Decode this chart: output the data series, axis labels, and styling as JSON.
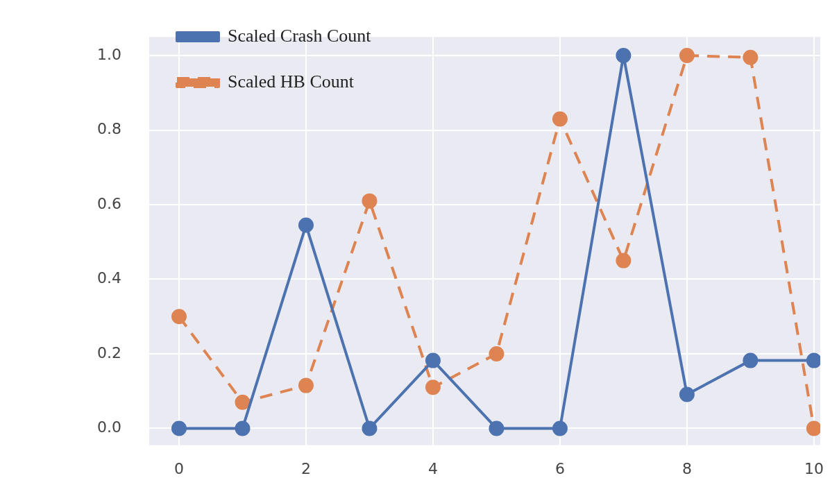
{
  "chart_data": {
    "type": "line",
    "x": [
      0,
      1,
      2,
      3,
      4,
      5,
      6,
      7,
      8,
      9,
      10
    ],
    "series": [
      {
        "name": "Scaled Crash Count",
        "color": "#4c72b0",
        "line_style": "solid",
        "values": [
          0,
          0,
          0.545,
          0,
          0.182,
          0,
          0,
          1.0,
          0.091,
          0.182,
          0.182
        ]
      },
      {
        "name": "Scaled HB Count",
        "color": "#dd8452",
        "line_style": "dashed",
        "values": [
          0.3,
          0.07,
          0.115,
          0.61,
          0.11,
          0.2,
          0.83,
          0.45,
          1.0,
          0.995,
          0
        ]
      }
    ],
    "xlim": [
      -0.47,
      10.1
    ],
    "xticks": [
      0,
      2,
      4,
      6,
      8,
      10
    ],
    "ylim": [
      -0.045,
      1.05
    ],
    "yticks": [
      {
        "value": 0,
        "label": "0.0"
      },
      {
        "value": 0.2,
        "label": "0.2"
      },
      {
        "value": 0.4,
        "label": "0.4"
      },
      {
        "value": 0.6,
        "label": "0.6"
      },
      {
        "value": 0.8,
        "label": "0.8"
      },
      {
        "value": 1,
        "label": "1.0"
      }
    ],
    "grid": true,
    "legend": "top left",
    "marker": "circle"
  }
}
